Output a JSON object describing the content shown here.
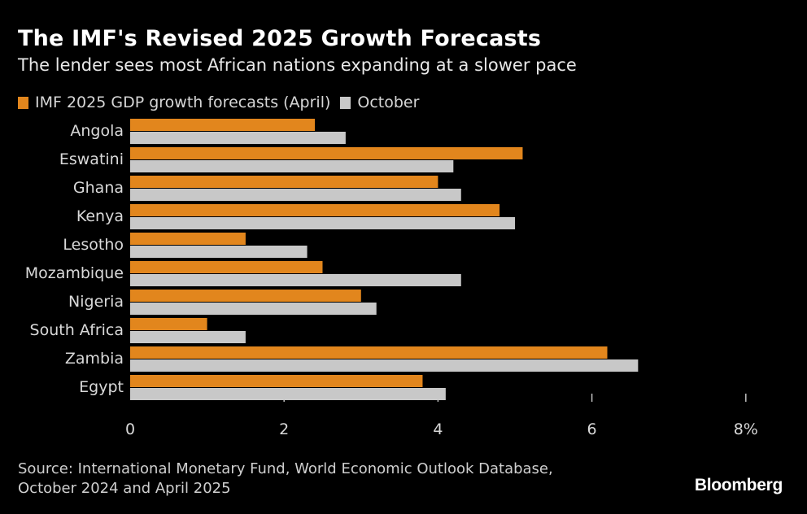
{
  "title": "The IMF's Revised 2025 Growth Forecasts",
  "subtitle": "The lender sees most African nations expanding at a slower pace",
  "legend": {
    "april": "IMF 2025 GDP growth forecasts (April)",
    "october": "October"
  },
  "colors": {
    "april": "#e2861d",
    "october": "#c8c8c8",
    "text": "#d9d9d9",
    "background": "#000000"
  },
  "source": {
    "line1": "Source: International Monetary Fund, World Economic Outlook Database,",
    "line2": "October 2024 and April 2025"
  },
  "brand": "Bloomberg",
  "chart_data": {
    "type": "bar",
    "orientation": "horizontal",
    "title": "The IMF's Revised 2025 Growth Forecasts",
    "subtitle": "The lender sees most African nations expanding at a slower pace",
    "xlabel": "",
    "ylabel": "",
    "xlim": [
      0,
      8
    ],
    "ticks": [
      0,
      2,
      4,
      6,
      8
    ],
    "tick_labels": [
      "0",
      "2",
      "4",
      "6",
      "8%"
    ],
    "grid": false,
    "legend_position": "top-left",
    "categories": [
      "Angola",
      "Eswatini",
      "Ghana",
      "Kenya",
      "Lesotho",
      "Mozambique",
      "Nigeria",
      "South Africa",
      "Zambia",
      "Egypt"
    ],
    "series": [
      {
        "name": "IMF 2025 GDP growth forecasts (April)",
        "values": [
          2.4,
          5.1,
          4.0,
          4.8,
          1.5,
          2.5,
          3.0,
          1.0,
          6.2,
          3.8
        ]
      },
      {
        "name": "October",
        "values": [
          2.8,
          4.2,
          4.3,
          5.0,
          2.3,
          4.3,
          3.2,
          1.5,
          6.6,
          4.1
        ]
      }
    ]
  }
}
